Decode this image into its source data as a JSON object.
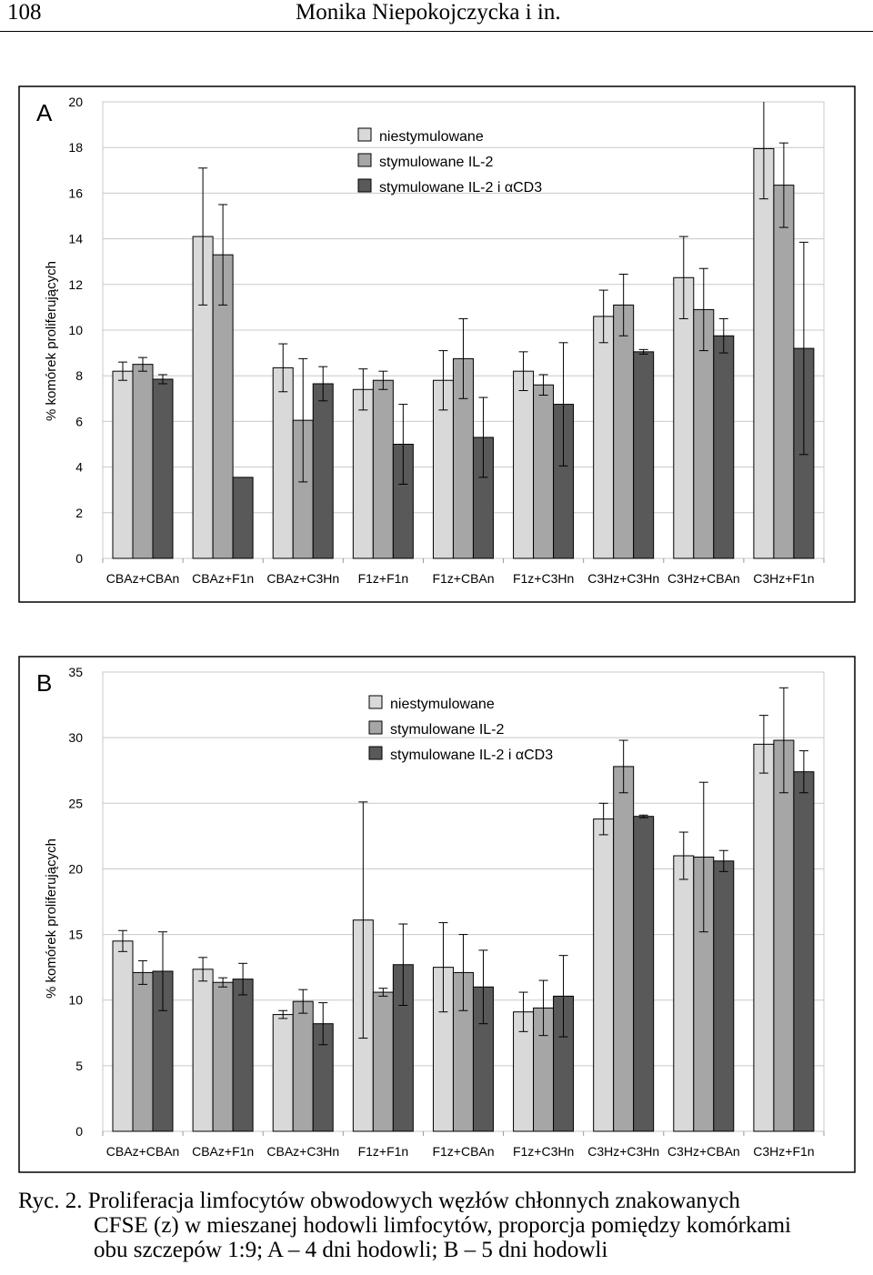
{
  "header": {
    "page_number": "108",
    "authors": "Monika Niepokojczycka i in."
  },
  "colors": {
    "niestymulowane": "#d9d9d9",
    "stymulowane_il2": "#a6a6a6",
    "stymulowane_il2_cd3": "#595959",
    "grid": "#c8c8c8"
  },
  "chart_data": [
    {
      "panel_label": "A",
      "type": "bar",
      "ylabel": "% komórek proliferujących",
      "ylim": [
        0,
        20
      ],
      "yticks": [
        0,
        2,
        4,
        6,
        8,
        10,
        12,
        14,
        16,
        18,
        20
      ],
      "categories": [
        "CBAz+CBAn",
        "CBAz+F1n",
        "CBAz+C3Hn",
        "F1z+F1n",
        "F1z+CBAn",
        "F1z+C3Hn",
        "C3Hz+C3Hn",
        "C3Hz+CBAn",
        "C3Hz+F1n"
      ],
      "series": [
        {
          "name": "niestymulowane",
          "values": [
            8.2,
            14.1,
            8.35,
            7.4,
            7.8,
            8.2,
            10.6,
            12.3,
            17.95
          ],
          "errors": [
            0.4,
            3.0,
            1.05,
            0.9,
            1.3,
            0.85,
            1.15,
            1.8,
            2.2
          ]
        },
        {
          "name": "stymulowane IL-2",
          "values": [
            8.5,
            13.3,
            6.05,
            7.8,
            8.75,
            7.6,
            11.1,
            10.9,
            16.35
          ],
          "errors": [
            0.3,
            2.2,
            2.7,
            0.4,
            1.75,
            0.45,
            1.35,
            1.8,
            1.85
          ]
        },
        {
          "name": "stymulowane IL-2 i αCD3",
          "values": [
            7.85,
            3.55,
            7.65,
            5.0,
            5.3,
            6.75,
            9.05,
            9.75,
            9.2
          ],
          "errors": [
            0.2,
            0.0,
            0.75,
            1.75,
            1.75,
            2.7,
            0.1,
            0.75,
            4.65
          ]
        }
      ],
      "legend": [
        "niestymulowane",
        "stymulowane IL-2",
        "stymulowane IL-2 i αCD3"
      ],
      "legend_position": "top-center",
      "grid": true
    },
    {
      "panel_label": "B",
      "type": "bar",
      "ylabel": "% komórek proliferujących",
      "ylim": [
        0,
        35
      ],
      "yticks": [
        0,
        5,
        10,
        15,
        20,
        25,
        30,
        35
      ],
      "categories": [
        "CBAz+CBAn",
        "CBAz+F1n",
        "CBAz+C3Hn",
        "F1z+F1n",
        "F1z+CBAn",
        "F1z+C3Hn",
        "C3Hz+C3Hn",
        "C3Hz+CBAn",
        "C3Hz+F1n"
      ],
      "series": [
        {
          "name": "niestymulowane",
          "values": [
            14.5,
            12.35,
            8.9,
            16.1,
            12.5,
            9.1,
            23.8,
            21.0,
            29.5
          ],
          "errors": [
            0.8,
            0.9,
            0.3,
            9.0,
            3.4,
            1.5,
            1.2,
            1.8,
            2.2
          ]
        },
        {
          "name": "stymulowane IL-2",
          "values": [
            12.1,
            11.35,
            9.9,
            10.6,
            12.1,
            9.4,
            27.8,
            20.9,
            29.8
          ],
          "errors": [
            0.9,
            0.35,
            0.9,
            0.3,
            2.9,
            2.1,
            2.0,
            5.7,
            4.0
          ]
        },
        {
          "name": "stymulowane IL-2 i αCD3",
          "values": [
            12.2,
            11.6,
            8.2,
            12.7,
            11.0,
            10.3,
            24.0,
            20.6,
            27.4
          ],
          "errors": [
            3.0,
            1.2,
            1.6,
            3.1,
            2.8,
            3.1,
            0.1,
            0.8,
            1.6
          ]
        }
      ],
      "legend": [
        "niestymulowane",
        "stymulowane IL-2",
        "stymulowane IL-2 i αCD3"
      ],
      "legend_position": "top-center",
      "grid": true
    }
  ],
  "caption": {
    "line1": "Ryc. 2. Proliferacja limfocytów obwodowych węzłów chłonnych znakowanych",
    "line2": "CFSE (z) w mieszanej hodowli limfocytów, proporcja pomiędzy komórkami",
    "line3": "obu szczepów 1:9;  A – 4 dni hodowli; B – 5 dni hodowli"
  }
}
